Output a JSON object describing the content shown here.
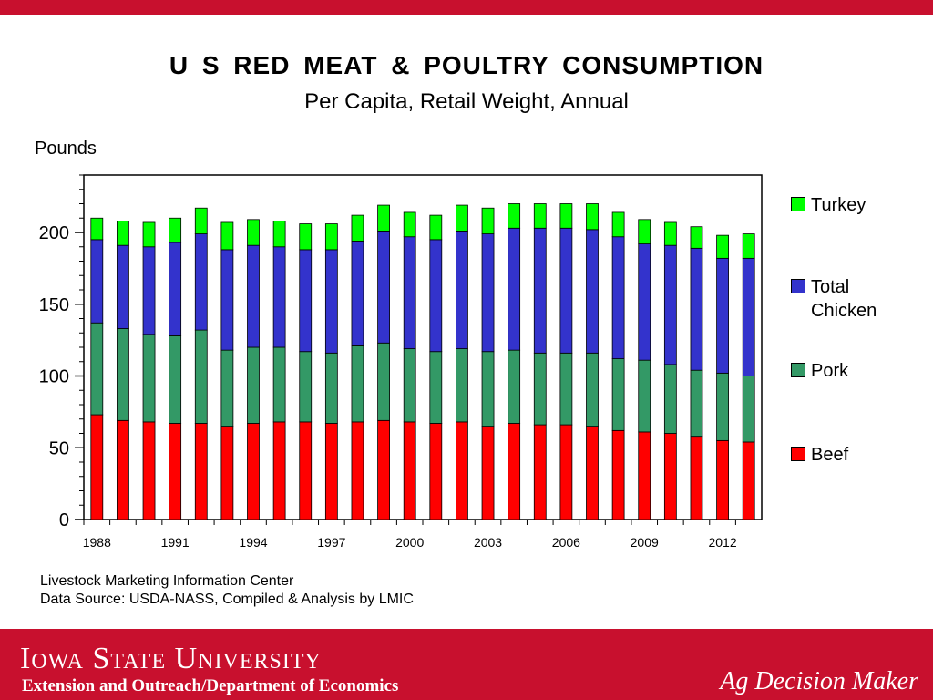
{
  "header": {
    "accent_color": "#c8102e"
  },
  "chart_data": {
    "type": "bar",
    "stacked": true,
    "title": "U S  RED  MEAT  &  POULTRY  CONSUMPTION",
    "subtitle": "Per Capita, Retail Weight, Annual",
    "ylabel": "Pounds",
    "xlabel": "",
    "ylim": [
      0,
      240
    ],
    "yticks": [
      0,
      50,
      100,
      150,
      200
    ],
    "categories": [
      "1988",
      "1989",
      "1990",
      "1991",
      "1992",
      "1993",
      "1994",
      "1995",
      "1996",
      "1997",
      "1998",
      "1999",
      "2000",
      "2001",
      "2002",
      "2003",
      "2004",
      "2005",
      "2006",
      "2007",
      "2008",
      "2009",
      "2010",
      "2011",
      "2012",
      "2013"
    ],
    "x_tick_labels": [
      "1988",
      "1991",
      "1994",
      "1997",
      "2000",
      "2003",
      "2006",
      "2009",
      "2012"
    ],
    "legend_position": "right",
    "series": [
      {
        "name": "Beef",
        "color": "#ff0000",
        "values": [
          73,
          69,
          68,
          67,
          67,
          65,
          67,
          68,
          68,
          67,
          68,
          69,
          68,
          67,
          68,
          65,
          67,
          66,
          66,
          65,
          62,
          61,
          60,
          58,
          55,
          54
        ]
      },
      {
        "name": "Pork",
        "color": "#339966",
        "values": [
          64,
          64,
          61,
          61,
          65,
          53,
          53,
          52,
          49,
          49,
          53,
          54,
          51,
          50,
          51,
          52,
          51,
          50,
          50,
          51,
          50,
          50,
          48,
          46,
          47,
          46
        ]
      },
      {
        "name": "Total Chicken",
        "color": "#3333cc",
        "values": [
          58,
          58,
          61,
          65,
          67,
          70,
          71,
          70,
          71,
          72,
          73,
          78,
          78,
          78,
          82,
          82,
          85,
          87,
          87,
          86,
          85,
          81,
          83,
          85,
          80,
          82
        ]
      },
      {
        "name": "Turkey",
        "color": "#00ff00",
        "values": [
          15,
          17,
          17,
          17,
          18,
          19,
          18,
          18,
          18,
          18,
          18,
          18,
          17,
          17,
          18,
          18,
          17,
          17,
          17,
          18,
          17,
          17,
          16,
          15,
          16,
          17
        ]
      }
    ],
    "legend_order": [
      "Turkey",
      "Total Chicken",
      "Pork",
      "Beef"
    ],
    "legend_labels": {
      "Turkey": [
        "Turkey"
      ],
      "Total Chicken": [
        "Total",
        "Chicken"
      ],
      "Pork": [
        "Pork"
      ],
      "Beef": [
        "Beef"
      ]
    }
  },
  "source": {
    "line1": "Livestock Marketing Information Center",
    "line2": "Data Source:  USDA-NASS, Compiled & Analysis by LMIC"
  },
  "footer": {
    "university": "Iowa State University",
    "department": "Extension and Outreach/Department of Economics",
    "program": "Ag Decision Maker"
  }
}
